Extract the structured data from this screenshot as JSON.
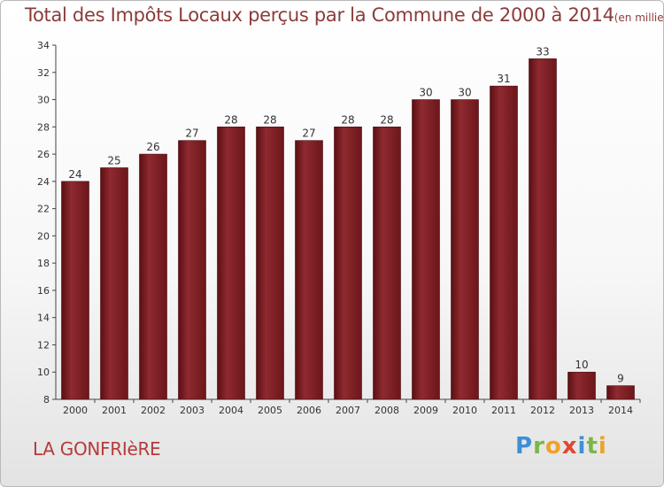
{
  "chart_data": {
    "type": "bar",
    "title": "Total des Impôts Locaux perçus par la Commune de 2000 à 2014",
    "unit_label": "(en milliers d'€)",
    "categories": [
      "2000",
      "2001",
      "2002",
      "2003",
      "2004",
      "2005",
      "2006",
      "2007",
      "2008",
      "2009",
      "2010",
      "2011",
      "2012",
      "2013",
      "2014"
    ],
    "values": [
      24,
      25,
      26,
      27,
      28,
      28,
      27,
      28,
      28,
      30,
      30,
      31,
      33,
      10,
      9
    ],
    "xlabel": "",
    "ylabel": "",
    "ylim": [
      8,
      34
    ],
    "yticks": [
      8,
      10,
      12,
      14,
      16,
      18,
      20,
      22,
      24,
      26,
      28,
      30,
      32,
      34
    ],
    "grid": false,
    "bar_color": "#7a1d22"
  },
  "commune": "LA GONFRIèRE",
  "brand": {
    "letters": [
      "P",
      "r",
      "o",
      "x",
      "i",
      "t",
      "i"
    ]
  }
}
